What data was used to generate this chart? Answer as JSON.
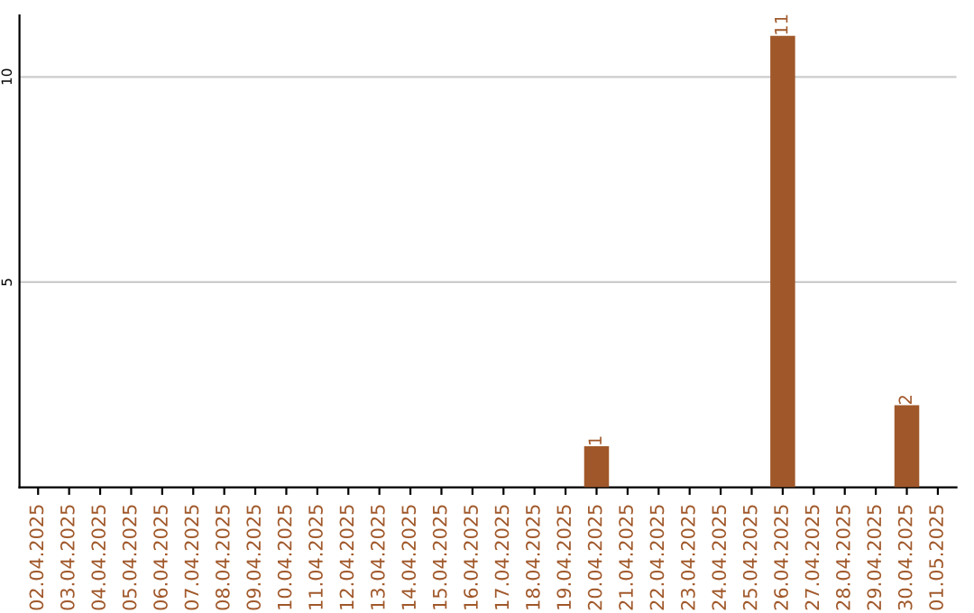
{
  "chart_data": {
    "type": "bar",
    "categories": [
      "02.04.2025",
      "03.04.2025",
      "04.04.2025",
      "05.04.2025",
      "06.04.2025",
      "07.04.2025",
      "08.04.2025",
      "09.04.2025",
      "10.04.2025",
      "11.04.2025",
      "12.04.2025",
      "13.04.2025",
      "14.04.2025",
      "15.04.2025",
      "16.04.2025",
      "17.04.2025",
      "18.04.2025",
      "19.04.2025",
      "20.04.2025",
      "21.04.2025",
      "22.04.2025",
      "23.04.2025",
      "24.04.2025",
      "25.04.2025",
      "26.04.2025",
      "27.04.2025",
      "28.04.2025",
      "29.04.2025",
      "30.04.2025",
      "01.05.2025"
    ],
    "values": [
      0,
      0,
      0,
      0,
      0,
      0,
      0,
      0,
      0,
      0,
      0,
      0,
      0,
      0,
      0,
      0,
      0,
      0,
      1,
      0,
      0,
      0,
      0,
      0,
      11,
      0,
      0,
      0,
      2,
      0
    ],
    "value_labels": [
      null,
      null,
      null,
      null,
      null,
      null,
      null,
      null,
      null,
      null,
      null,
      null,
      null,
      null,
      null,
      null,
      null,
      null,
      "1",
      null,
      null,
      null,
      null,
      null,
      "11",
      null,
      null,
      null,
      "2",
      null
    ],
    "color": "#a0582a",
    "ylim": [
      0,
      11.5
    ],
    "yticks": [
      5,
      10
    ],
    "grid": "y"
  }
}
